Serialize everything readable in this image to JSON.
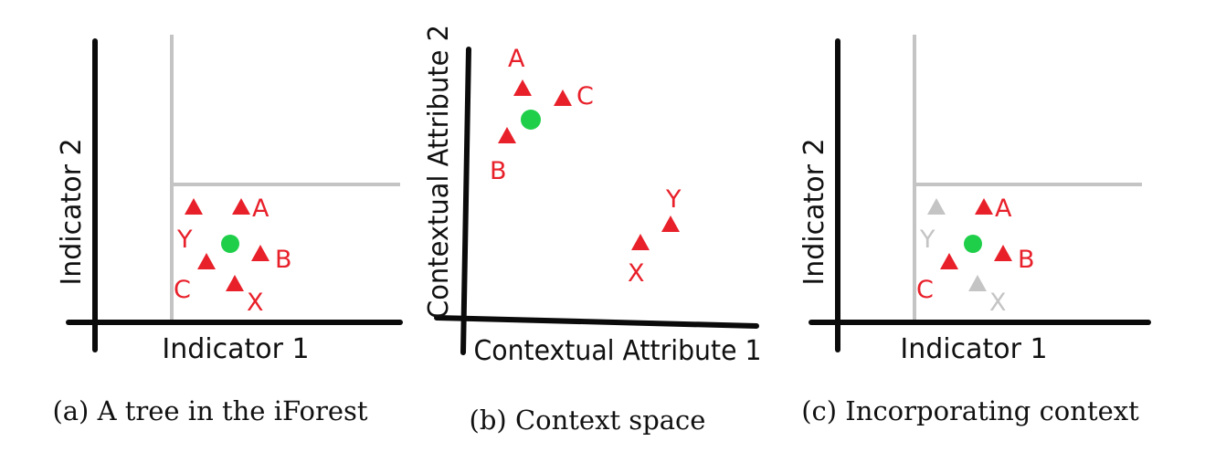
{
  "colors": {
    "outlier": "#e8202a",
    "greyed": "#c4c4c4",
    "focus": "#1fcf4a",
    "axis": "#0b0b0b",
    "split": "#c4c4c4"
  },
  "panels": [
    {
      "id": "a",
      "xlabel": "Indicator 1",
      "ylabel": "Indicator 2",
      "caption": "(a) A tree in the iForest",
      "points": [
        {
          "label": "A",
          "greyed": false
        },
        {
          "label": "B",
          "greyed": false
        },
        {
          "label": "C",
          "greyed": false
        },
        {
          "label": "X",
          "greyed": false
        },
        {
          "label": "Y",
          "greyed": false
        }
      ]
    },
    {
      "id": "b",
      "xlabel": "Contextual Attribute 1",
      "ylabel": "Contextual Attribute 2",
      "caption": "(b) Context space",
      "points": [
        {
          "label": "A",
          "greyed": false
        },
        {
          "label": "B",
          "greyed": false
        },
        {
          "label": "C",
          "greyed": false
        },
        {
          "label": "X",
          "greyed": false
        },
        {
          "label": "Y",
          "greyed": false
        }
      ]
    },
    {
      "id": "c",
      "xlabel": "Indicator 1",
      "ylabel": "Indicator 2",
      "caption": "(c) Incorporating context",
      "points": [
        {
          "label": "A",
          "greyed": false
        },
        {
          "label": "B",
          "greyed": false
        },
        {
          "label": "C",
          "greyed": false
        },
        {
          "label": "X",
          "greyed": true
        },
        {
          "label": "Y",
          "greyed": true
        }
      ]
    }
  ]
}
